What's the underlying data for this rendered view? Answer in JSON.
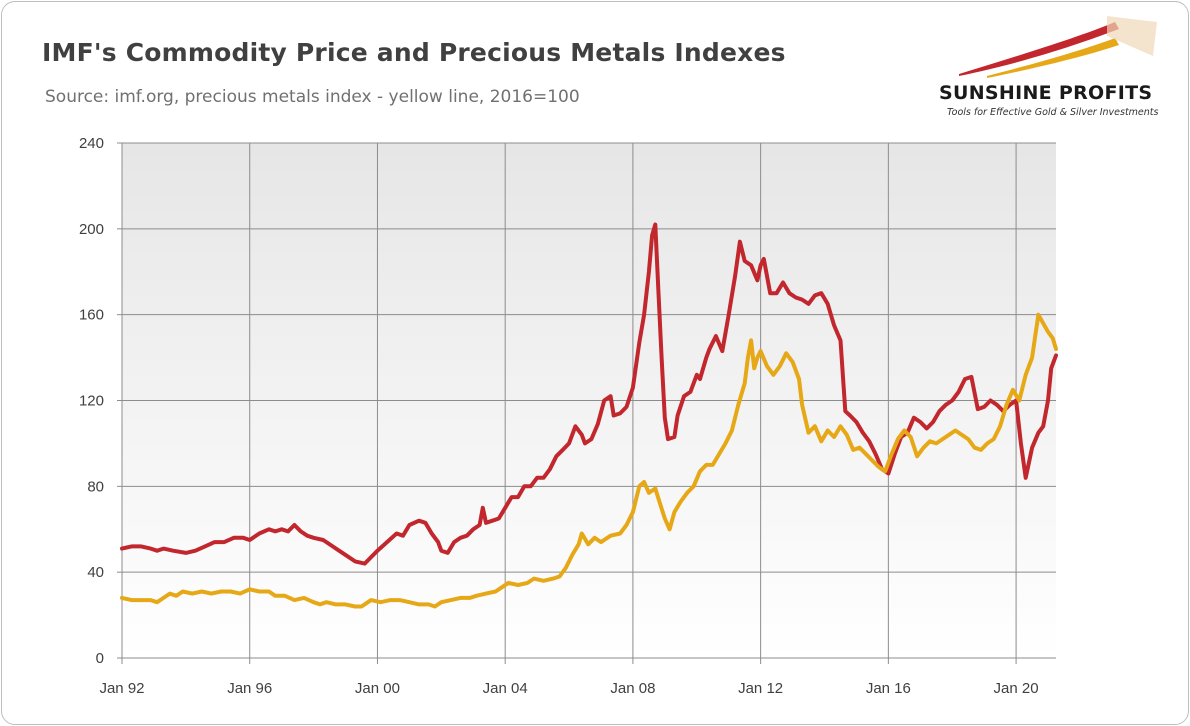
{
  "header": {
    "title": "IMF's Commodity Price and Precious Metals Indexes",
    "subtitle": "Source: imf.org, precious metals index - yellow line, 2016=100"
  },
  "logo": {
    "name": "SUNSHINE PROFITS",
    "tagline": "Tools for Effective Gold & Silver Investments",
    "colors": {
      "red": "#c2272d",
      "gold": "#e6a817"
    }
  },
  "chart_data": {
    "type": "line",
    "title": "IMF's Commodity Price and Precious Metals Indexes",
    "subtitle": "Source: imf.org, precious metals index - yellow line, 2016=100",
    "xlabel": "",
    "ylabel": "",
    "ylim": [
      0,
      240
    ],
    "xlim": [
      1992.0,
      2021.25
    ],
    "yticks": [
      0,
      40,
      80,
      120,
      160,
      200,
      240
    ],
    "xticks": [
      {
        "value": 1992,
        "label": "Jan 92"
      },
      {
        "value": 1996,
        "label": "Jan 96"
      },
      {
        "value": 2000,
        "label": "Jan 00"
      },
      {
        "value": 2004,
        "label": "Jan 04"
      },
      {
        "value": 2008,
        "label": "Jan 08"
      },
      {
        "value": 2012,
        "label": "Jan 12"
      },
      {
        "value": 2016,
        "label": "Jan 16"
      },
      {
        "value": 2020,
        "label": "Jan 20"
      }
    ],
    "grid": true,
    "legend": "none",
    "series": [
      {
        "color": "#c2272d",
        "points": [
          [
            1992.0,
            51
          ],
          [
            1992.3,
            52
          ],
          [
            1992.6,
            52
          ],
          [
            1992.9,
            51
          ],
          [
            1993.1,
            50
          ],
          [
            1993.3,
            51
          ],
          [
            1993.6,
            50
          ],
          [
            1994.0,
            49
          ],
          [
            1994.3,
            50
          ],
          [
            1994.6,
            52
          ],
          [
            1994.9,
            54
          ],
          [
            1995.2,
            54
          ],
          [
            1995.5,
            56
          ],
          [
            1995.8,
            56
          ],
          [
            1996.0,
            55
          ],
          [
            1996.3,
            58
          ],
          [
            1996.6,
            60
          ],
          [
            1996.8,
            59
          ],
          [
            1997.0,
            60
          ],
          [
            1997.2,
            59
          ],
          [
            1997.4,
            62
          ],
          [
            1997.6,
            59
          ],
          [
            1997.8,
            57
          ],
          [
            1998.0,
            56
          ],
          [
            1998.3,
            55
          ],
          [
            1998.6,
            52
          ],
          [
            1998.8,
            50
          ],
          [
            1999.1,
            47
          ],
          [
            1999.3,
            45
          ],
          [
            1999.6,
            44
          ],
          [
            1999.8,
            47
          ],
          [
            2000.0,
            50
          ],
          [
            2000.3,
            54
          ],
          [
            2000.6,
            58
          ],
          [
            2000.8,
            57
          ],
          [
            2001.0,
            62
          ],
          [
            2001.3,
            64
          ],
          [
            2001.5,
            63
          ],
          [
            2001.7,
            58
          ],
          [
            2001.9,
            54
          ],
          [
            2002.0,
            50
          ],
          [
            2002.2,
            49
          ],
          [
            2002.4,
            54
          ],
          [
            2002.6,
            56
          ],
          [
            2002.8,
            57
          ],
          [
            2003.0,
            60
          ],
          [
            2003.2,
            62
          ],
          [
            2003.3,
            70
          ],
          [
            2003.4,
            63
          ],
          [
            2003.6,
            64
          ],
          [
            2003.8,
            65
          ],
          [
            2004.0,
            70
          ],
          [
            2004.2,
            75
          ],
          [
            2004.4,
            75
          ],
          [
            2004.6,
            80
          ],
          [
            2004.8,
            80
          ],
          [
            2005.0,
            84
          ],
          [
            2005.2,
            84
          ],
          [
            2005.4,
            88
          ],
          [
            2005.6,
            94
          ],
          [
            2005.8,
            97
          ],
          [
            2006.0,
            100
          ],
          [
            2006.2,
            108
          ],
          [
            2006.4,
            104
          ],
          [
            2006.5,
            100
          ],
          [
            2006.7,
            102
          ],
          [
            2006.9,
            109
          ],
          [
            2007.1,
            120
          ],
          [
            2007.3,
            122
          ],
          [
            2007.4,
            113
          ],
          [
            2007.6,
            114
          ],
          [
            2007.8,
            117
          ],
          [
            2008.0,
            126
          ],
          [
            2008.2,
            147
          ],
          [
            2008.35,
            160
          ],
          [
            2008.5,
            180
          ],
          [
            2008.6,
            197
          ],
          [
            2008.7,
            202
          ],
          [
            2008.8,
            170
          ],
          [
            2008.9,
            140
          ],
          [
            2009.0,
            112
          ],
          [
            2009.1,
            102
          ],
          [
            2009.3,
            103
          ],
          [
            2009.4,
            113
          ],
          [
            2009.6,
            122
          ],
          [
            2009.8,
            124
          ],
          [
            2010.0,
            132
          ],
          [
            2010.1,
            130
          ],
          [
            2010.3,
            140
          ],
          [
            2010.4,
            144
          ],
          [
            2010.6,
            150
          ],
          [
            2010.8,
            143
          ],
          [
            2011.0,
            160
          ],
          [
            2011.2,
            178
          ],
          [
            2011.35,
            194
          ],
          [
            2011.5,
            185
          ],
          [
            2011.7,
            183
          ],
          [
            2011.9,
            176
          ],
          [
            2012.0,
            183
          ],
          [
            2012.1,
            186
          ],
          [
            2012.3,
            170
          ],
          [
            2012.5,
            170
          ],
          [
            2012.7,
            175
          ],
          [
            2012.9,
            170
          ],
          [
            2013.1,
            168
          ],
          [
            2013.3,
            167
          ],
          [
            2013.5,
            165
          ],
          [
            2013.7,
            169
          ],
          [
            2013.9,
            170
          ],
          [
            2014.1,
            165
          ],
          [
            2014.3,
            155
          ],
          [
            2014.5,
            148
          ],
          [
            2014.65,
            115
          ],
          [
            2014.8,
            113
          ],
          [
            2015.0,
            110
          ],
          [
            2015.2,
            105
          ],
          [
            2015.4,
            101
          ],
          [
            2015.6,
            95
          ],
          [
            2015.8,
            88
          ],
          [
            2016.0,
            86
          ],
          [
            2016.2,
            95
          ],
          [
            2016.4,
            103
          ],
          [
            2016.6,
            105
          ],
          [
            2016.8,
            112
          ],
          [
            2017.0,
            110
          ],
          [
            2017.2,
            107
          ],
          [
            2017.4,
            110
          ],
          [
            2017.6,
            115
          ],
          [
            2017.8,
            118
          ],
          [
            2018.0,
            120
          ],
          [
            2018.2,
            124
          ],
          [
            2018.4,
            130
          ],
          [
            2018.6,
            131
          ],
          [
            2018.8,
            116
          ],
          [
            2019.0,
            117
          ],
          [
            2019.2,
            120
          ],
          [
            2019.4,
            118
          ],
          [
            2019.6,
            115
          ],
          [
            2019.8,
            118
          ],
          [
            2020.0,
            120
          ],
          [
            2020.15,
            100
          ],
          [
            2020.3,
            84
          ],
          [
            2020.5,
            98
          ],
          [
            2020.7,
            105
          ],
          [
            2020.85,
            108
          ],
          [
            2021.0,
            120
          ],
          [
            2021.1,
            135
          ],
          [
            2021.25,
            141
          ]
        ]
      },
      {
        "color": "#e6a817",
        "points": [
          [
            1992.0,
            28
          ],
          [
            1992.3,
            27
          ],
          [
            1992.6,
            27
          ],
          [
            1992.9,
            27
          ],
          [
            1993.1,
            26
          ],
          [
            1993.3,
            28
          ],
          [
            1993.5,
            30
          ],
          [
            1993.7,
            29
          ],
          [
            1993.9,
            31
          ],
          [
            1994.2,
            30
          ],
          [
            1994.5,
            31
          ],
          [
            1994.8,
            30
          ],
          [
            1995.1,
            31
          ],
          [
            1995.4,
            31
          ],
          [
            1995.7,
            30
          ],
          [
            1996.0,
            32
          ],
          [
            1996.3,
            31
          ],
          [
            1996.6,
            31
          ],
          [
            1996.8,
            29
          ],
          [
            1997.1,
            29
          ],
          [
            1997.4,
            27
          ],
          [
            1997.7,
            28
          ],
          [
            1998.0,
            26
          ],
          [
            1998.2,
            25
          ],
          [
            1998.4,
            26
          ],
          [
            1998.7,
            25
          ],
          [
            1999.0,
            25
          ],
          [
            1999.3,
            24
          ],
          [
            1999.5,
            24
          ],
          [
            1999.7,
            26
          ],
          [
            1999.8,
            27
          ],
          [
            2000.1,
            26
          ],
          [
            2000.4,
            27
          ],
          [
            2000.7,
            27
          ],
          [
            2001.0,
            26
          ],
          [
            2001.3,
            25
          ],
          [
            2001.6,
            25
          ],
          [
            2001.8,
            24
          ],
          [
            2002.0,
            26
          ],
          [
            2002.3,
            27
          ],
          [
            2002.6,
            28
          ],
          [
            2002.9,
            28
          ],
          [
            2003.1,
            29
          ],
          [
            2003.4,
            30
          ],
          [
            2003.7,
            31
          ],
          [
            2003.9,
            33
          ],
          [
            2004.1,
            35
          ],
          [
            2004.4,
            34
          ],
          [
            2004.7,
            35
          ],
          [
            2004.9,
            37
          ],
          [
            2005.2,
            36
          ],
          [
            2005.5,
            37
          ],
          [
            2005.7,
            38
          ],
          [
            2005.9,
            42
          ],
          [
            2006.1,
            48
          ],
          [
            2006.3,
            53
          ],
          [
            2006.4,
            58
          ],
          [
            2006.6,
            53
          ],
          [
            2006.8,
            56
          ],
          [
            2007.0,
            54
          ],
          [
            2007.3,
            57
          ],
          [
            2007.6,
            58
          ],
          [
            2007.8,
            62
          ],
          [
            2008.0,
            68
          ],
          [
            2008.2,
            80
          ],
          [
            2008.35,
            82
          ],
          [
            2008.5,
            77
          ],
          [
            2008.7,
            79
          ],
          [
            2008.85,
            72
          ],
          [
            2009.0,
            65
          ],
          [
            2009.15,
            60
          ],
          [
            2009.3,
            68
          ],
          [
            2009.5,
            73
          ],
          [
            2009.7,
            77
          ],
          [
            2009.9,
            80
          ],
          [
            2010.1,
            87
          ],
          [
            2010.3,
            90
          ],
          [
            2010.5,
            90
          ],
          [
            2010.7,
            95
          ],
          [
            2010.9,
            100
          ],
          [
            2011.1,
            106
          ],
          [
            2011.3,
            118
          ],
          [
            2011.5,
            128
          ],
          [
            2011.6,
            140
          ],
          [
            2011.7,
            148
          ],
          [
            2011.8,
            135
          ],
          [
            2011.9,
            140
          ],
          [
            2012.0,
            143
          ],
          [
            2012.2,
            136
          ],
          [
            2012.4,
            132
          ],
          [
            2012.6,
            136
          ],
          [
            2012.8,
            142
          ],
          [
            2013.0,
            138
          ],
          [
            2013.2,
            130
          ],
          [
            2013.3,
            118
          ],
          [
            2013.5,
            105
          ],
          [
            2013.7,
            108
          ],
          [
            2013.9,
            101
          ],
          [
            2014.1,
            106
          ],
          [
            2014.3,
            103
          ],
          [
            2014.5,
            108
          ],
          [
            2014.7,
            104
          ],
          [
            2014.9,
            97
          ],
          [
            2015.1,
            98
          ],
          [
            2015.3,
            95
          ],
          [
            2015.5,
            92
          ],
          [
            2015.7,
            89
          ],
          [
            2015.9,
            87
          ],
          [
            2016.1,
            95
          ],
          [
            2016.3,
            102
          ],
          [
            2016.5,
            106
          ],
          [
            2016.7,
            103
          ],
          [
            2016.9,
            94
          ],
          [
            2017.1,
            98
          ],
          [
            2017.3,
            101
          ],
          [
            2017.5,
            100
          ],
          [
            2017.7,
            102
          ],
          [
            2017.9,
            104
          ],
          [
            2018.1,
            106
          ],
          [
            2018.3,
            104
          ],
          [
            2018.5,
            102
          ],
          [
            2018.7,
            98
          ],
          [
            2018.9,
            97
          ],
          [
            2019.1,
            100
          ],
          [
            2019.3,
            102
          ],
          [
            2019.5,
            108
          ],
          [
            2019.7,
            118
          ],
          [
            2019.9,
            125
          ],
          [
            2020.1,
            120
          ],
          [
            2020.3,
            132
          ],
          [
            2020.5,
            140
          ],
          [
            2020.6,
            150
          ],
          [
            2020.7,
            160
          ],
          [
            2020.85,
            156
          ],
          [
            2021.0,
            152
          ],
          [
            2021.15,
            149
          ],
          [
            2021.25,
            144
          ]
        ]
      }
    ]
  }
}
